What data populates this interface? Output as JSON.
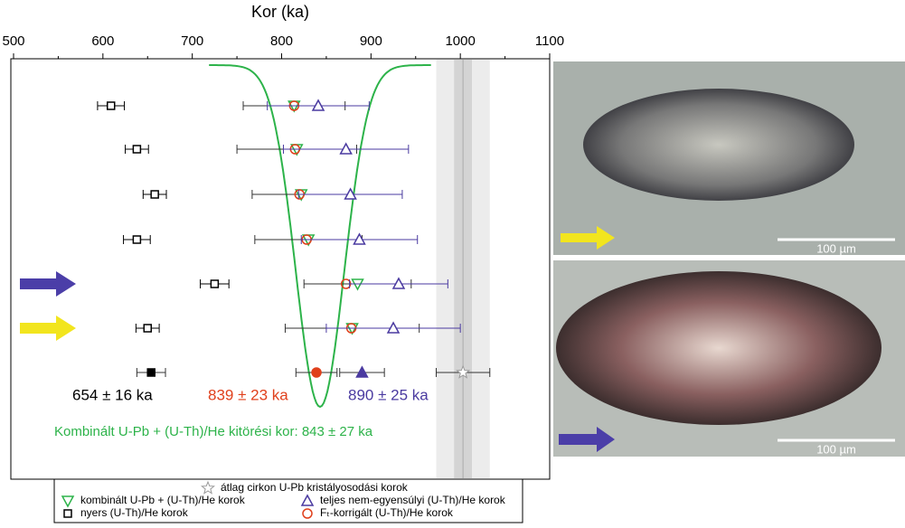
{
  "chart_data": {
    "type": "errorbar",
    "title": "Kor (ka)",
    "xlim": [
      500,
      1100
    ],
    "xticks": [
      500,
      600,
      700,
      800,
      900,
      1000,
      1100
    ],
    "series": [
      {
        "name": "nyers (U-Th)/He korok",
        "marker": "square",
        "color": "#000000",
        "values": [
          609,
          638,
          658,
          638,
          725,
          650
        ],
        "errors": [
          15,
          13,
          13,
          15,
          16,
          13
        ]
      },
      {
        "name": "kombinált U-Pb + (U-Th)/He korok",
        "marker": "down-triangle",
        "color": "#2db34a",
        "values": [
          814,
          817,
          822,
          830,
          885,
          879
        ],
        "errors": [
          57,
          67,
          55,
          60,
          60,
          75
        ]
      },
      {
        "name": "Fₜ-korrigált (U-Th)/He korok",
        "marker": "circle",
        "color": "#e0401c",
        "values": [
          814,
          815,
          820,
          828,
          872,
          878
        ]
      },
      {
        "name": "teljes nem-egyensúlyi (U-Th)/He korok",
        "marker": "up-triangle",
        "color": "#4a3aa0",
        "values": [
          841,
          872,
          877,
          887,
          931,
          925
        ],
        "errors": [
          57,
          70,
          58,
          65,
          55,
          75
        ]
      }
    ],
    "summary": [
      {
        "value": 654,
        "error": 16,
        "label": "654 ± 16 ka",
        "color": "#000000",
        "marker": "square"
      },
      {
        "value": 839,
        "error": 23,
        "label": "839 ± 23 ka",
        "color": "#e0401c",
        "marker": "circle"
      },
      {
        "value": 890,
        "error": 25,
        "label": "890 ± 25 ka",
        "color": "#4a3aa0",
        "marker": "up-triangle"
      }
    ],
    "crystallization": {
      "name": "átlag cirkon U-Pb kristályosodási korok",
      "value": 1003,
      "error": 30,
      "inner_error": 10,
      "color": "#999999"
    },
    "eruption": {
      "value": 843,
      "error": 27,
      "label": "Kombinált U-Pb + (U-Th)/He kitörési kor: 843 ± 27 ka",
      "color": "#2db34a"
    }
  },
  "photos": [
    {
      "scale": "100 µm"
    },
    {
      "scale": "100 µm"
    }
  ]
}
